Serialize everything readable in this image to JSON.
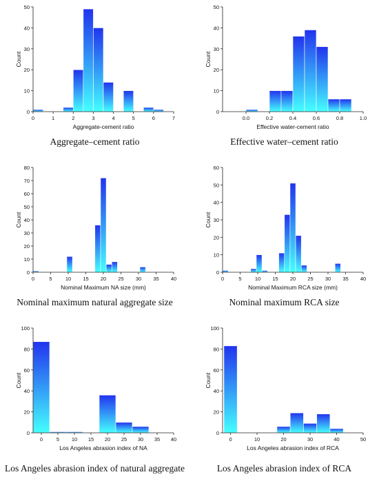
{
  "chart_data": [
    {
      "type": "bar",
      "caption": "Aggregate–cement ratio",
      "xlabel": "Aggregate-cement ratio",
      "ylabel": "Count",
      "xlim": [
        0,
        7
      ],
      "ylim": [
        0,
        50
      ],
      "xticks": [
        "0",
        "1",
        "2",
        "3",
        "4",
        "5",
        "6",
        "7"
      ],
      "yticks": [
        "0",
        "10",
        "20",
        "30",
        "40",
        "50"
      ],
      "bin_width": 0.5,
      "bins": [
        0,
        0.5,
        1,
        1.5,
        2,
        2.5,
        3,
        3.5,
        4,
        4.5,
        5,
        5.5,
        6,
        6.5
      ],
      "values": [
        1,
        0,
        0,
        2,
        20,
        49,
        40,
        14,
        0,
        10,
        0,
        2,
        1,
        0
      ]
    },
    {
      "type": "bar",
      "caption": "Effective water–cement ratio",
      "xlabel": "Effective water-cement ratio",
      "ylabel": "Count",
      "xlim": [
        -0.2,
        1.0
      ],
      "ylim": [
        0,
        50
      ],
      "xticks": [
        "0.0",
        "0.2",
        "0.4",
        "0.6",
        "0.8",
        "1.0"
      ],
      "xtick_values": [
        0.0,
        0.2,
        0.4,
        0.6,
        0.8,
        1.0
      ],
      "yticks": [
        "0",
        "10",
        "20",
        "30",
        "40",
        "50"
      ],
      "bin_width": 0.1,
      "bins": [
        -0.1,
        0.0,
        0.1,
        0.2,
        0.3,
        0.4,
        0.5,
        0.6,
        0.7,
        0.8
      ],
      "values": [
        0,
        1,
        0,
        10,
        10,
        36,
        39,
        31,
        6,
        6
      ]
    },
    {
      "type": "bar",
      "caption": "Nominal maximum natural aggregate size",
      "xlabel": "Nominal Maximum NA size (mm)",
      "ylabel": "Count",
      "xlim": [
        0,
        40
      ],
      "ylim": [
        0,
        80
      ],
      "xticks": [
        "0",
        "5",
        "10",
        "15",
        "20",
        "25",
        "30",
        "35",
        "40"
      ],
      "yticks": [
        "0",
        "10",
        "20",
        "30",
        "40",
        "50",
        "60",
        "70",
        "80"
      ],
      "bin_width": 1.6,
      "bins": [
        0.0,
        9.6,
        17.6,
        19.2,
        20.8,
        22.4,
        30.4
      ],
      "values": [
        1,
        12,
        36,
        72,
        6,
        8,
        4
      ]
    },
    {
      "type": "bar",
      "caption": "Nominal maximum RCA size",
      "xlabel": "Nominal Maximum RCA size (mm)",
      "ylabel": "Count",
      "xlim": [
        0,
        40
      ],
      "ylim": [
        0,
        60
      ],
      "xticks": [
        "0",
        "5",
        "10",
        "15",
        "20",
        "25",
        "30",
        "35",
        "40"
      ],
      "yticks": [
        "0",
        "10",
        "20",
        "30",
        "40",
        "50",
        "60"
      ],
      "bin_width": 1.6,
      "bins": [
        0.0,
        8.0,
        9.6,
        11.2,
        16.0,
        17.6,
        19.2,
        20.8,
        22.4,
        32.0
      ],
      "values": [
        1,
        2,
        10,
        1,
        11,
        33,
        51,
        21,
        4,
        5
      ]
    },
    {
      "type": "bar",
      "caption": "Los Angeles abrasion index of natural aggregate",
      "xlabel": "Los Angeles abrasion index of NA",
      "ylabel": "Count",
      "xlim": [
        -2.5,
        40
      ],
      "ylim": [
        0,
        100
      ],
      "xticks": [
        "0",
        "5",
        "10",
        "15",
        "20",
        "25",
        "30",
        "35",
        "40"
      ],
      "xtick_values": [
        0,
        5,
        10,
        15,
        20,
        25,
        30,
        35,
        40
      ],
      "yticks": [
        "0",
        "20",
        "40",
        "60",
        "80",
        "100"
      ],
      "bin_width": 5,
      "bins": [
        -2.5,
        2.5,
        7.5,
        12.5,
        17.5,
        22.5,
        27.5,
        32.5
      ],
      "values": [
        87,
        1,
        1,
        0,
        36,
        10,
        6,
        0
      ]
    },
    {
      "type": "bar",
      "caption": "Los Angeles abrasion index of RCA",
      "xlabel": "Los Angeles abrasion index of RCA",
      "ylabel": "Count",
      "xlim": [
        -3,
        50
      ],
      "ylim": [
        0,
        100
      ],
      "xticks": [
        "0",
        "10",
        "20",
        "30",
        "40",
        "50"
      ],
      "xtick_values": [
        0,
        10,
        20,
        30,
        40,
        50
      ],
      "yticks": [
        "0",
        "20",
        "40",
        "60",
        "80",
        "100"
      ],
      "bin_width": 5,
      "bins": [
        -2.5,
        2.5,
        7.5,
        12.5,
        17.5,
        22.5,
        27.5,
        32.5,
        37.5,
        42.5
      ],
      "values": [
        83,
        0,
        0,
        0,
        6,
        19,
        9,
        18,
        4,
        0
      ]
    }
  ],
  "colors": {
    "bar_top": "#2233ee",
    "bar_bottom": "#44ffff",
    "axis": "#222222"
  }
}
